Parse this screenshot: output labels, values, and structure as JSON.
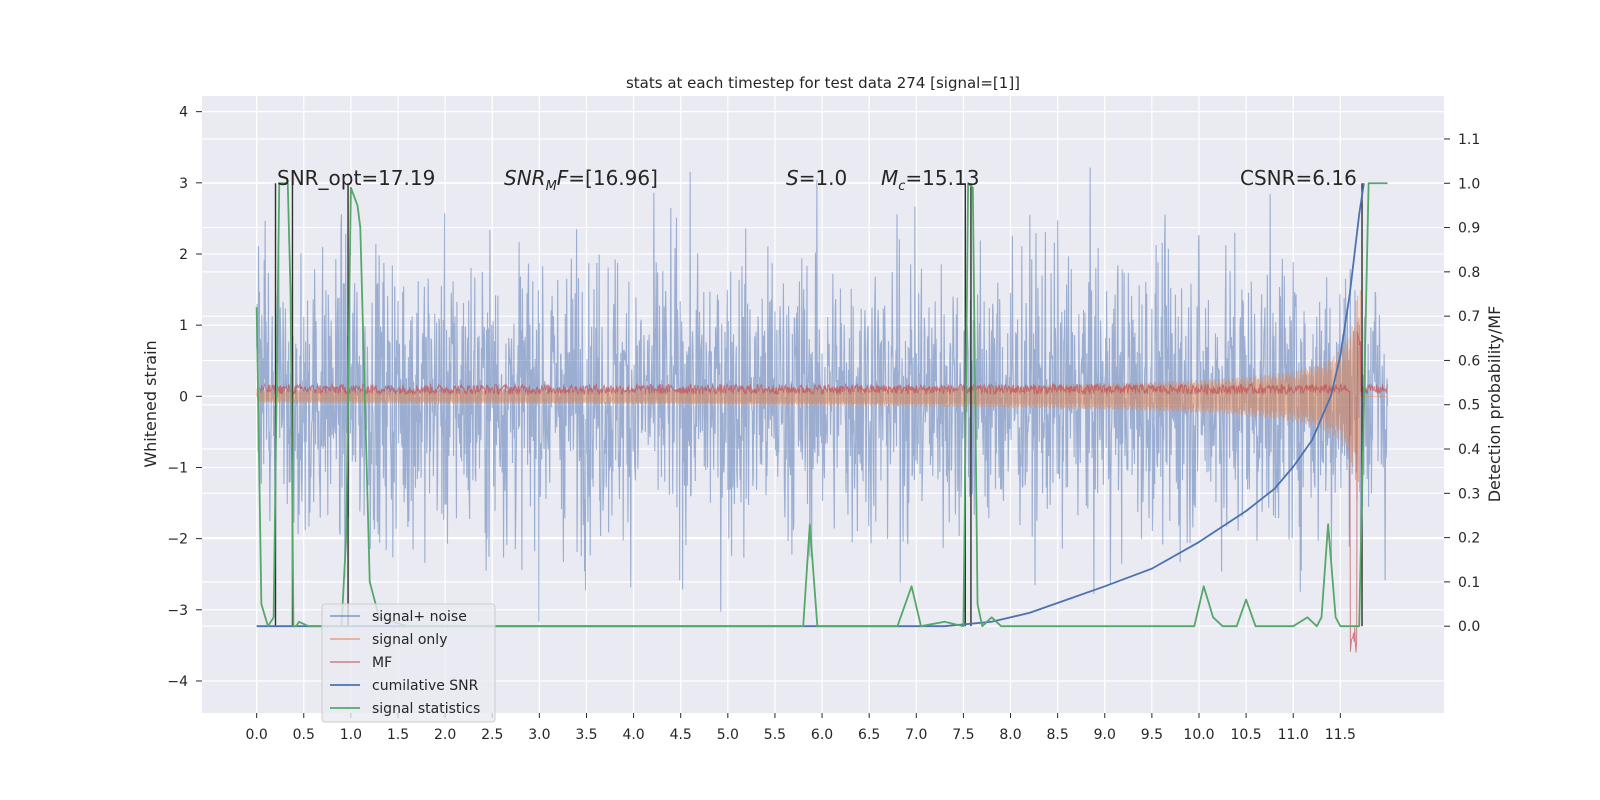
{
  "chart_data": {
    "type": "line",
    "title": "stats at each timestep for test data 274 [signal=[1]]",
    "xlabel": "",
    "ylabel": "Whitened strain",
    "y2label": "Detection probability/MF",
    "xlim": [
      -0.58,
      12.6
    ],
    "ylim": [
      -4.45,
      4.22
    ],
    "y2lim": [
      -0.196,
      1.197
    ],
    "grid": true,
    "legend_position": "lower-left",
    "xticks": [
      0.0,
      0.5,
      1.0,
      1.5,
      2.0,
      2.5,
      3.0,
      3.5,
      4.0,
      4.5,
      5.0,
      5.5,
      6.0,
      6.5,
      7.0,
      7.5,
      8.0,
      8.5,
      9.0,
      9.5,
      10.0,
      10.5,
      11.0,
      11.5
    ],
    "xtick_labels": [
      "0.0",
      "0.5",
      "1.0",
      "1.5",
      "2.0",
      "2.5",
      "3.0",
      "3.5",
      "4.0",
      "4.5",
      "5.0",
      "5.5",
      "6.0",
      "6.5",
      "7.0",
      "7.5",
      "8.0",
      "8.5",
      "9.0",
      "9.5",
      "10.0",
      "10.5",
      "11.0",
      "11.5"
    ],
    "yticks": [
      -4,
      -3,
      -2,
      -1,
      0,
      1,
      2,
      3,
      4
    ],
    "ytick_labels": [
      "−4",
      "−3",
      "−2",
      "−1",
      "0",
      "1",
      "2",
      "3",
      "4"
    ],
    "y2ticks": [
      0.0,
      0.1,
      0.2,
      0.3,
      0.4,
      0.5,
      0.6,
      0.7,
      0.8,
      0.9,
      1.0,
      1.1
    ],
    "y2tick_labels": [
      "0.0",
      "0.1",
      "0.2",
      "0.3",
      "0.4",
      "0.5",
      "0.6",
      "0.7",
      "0.8",
      "0.9",
      "1.0",
      "1.1"
    ],
    "annotations": [
      {
        "id": "snr_opt",
        "text": "SNR_opt=17.19",
        "x": 0.2,
        "y": 3.0
      },
      {
        "id": "snr_mf",
        "text": "SNR_MF=[16.96]",
        "x": 2.6,
        "y": 3.0
      },
      {
        "id": "s",
        "text": "S=1.0",
        "x": 5.6,
        "y": 3.0
      },
      {
        "id": "mc",
        "text": "M_c=15.13",
        "x": 6.6,
        "y": 3.0
      },
      {
        "id": "csnr",
        "text": "CSNR=6.16",
        "x": 10.4,
        "y": 3.0
      }
    ],
    "series": [
      {
        "name": "signal+ noise",
        "color": "#4c72b0",
        "axis": "left",
        "kind": "noise",
        "std": 1.0,
        "x_range": [
          0.0,
          12.0
        ]
      },
      {
        "name": "signal only",
        "color": "#dd8452",
        "axis": "left",
        "kind": "chirp",
        "x_range": [
          0.0,
          12.0
        ]
      },
      {
        "name": "MF",
        "color": "#c44e52",
        "axis": "left",
        "kind": "mf",
        "x_range": [
          0.0,
          12.0
        ]
      },
      {
        "name": "cumilative SNR",
        "color": "#4c72b0",
        "axis": "right",
        "x": [
          0.0,
          7.3,
          7.8,
          8.2,
          8.6,
          9.0,
          9.5,
          10.0,
          10.5,
          10.8,
          11.0,
          11.2,
          11.4,
          11.5,
          11.6,
          11.7,
          11.75
        ],
        "y": [
          0.0,
          0.0,
          0.01,
          0.03,
          0.06,
          0.09,
          0.13,
          0.19,
          0.26,
          0.31,
          0.36,
          0.42,
          0.52,
          0.61,
          0.75,
          0.93,
          1.0
        ]
      },
      {
        "name": "signal statistics",
        "color": "#55a868",
        "axis": "right",
        "x": [
          0.0,
          0.05,
          0.12,
          0.18,
          0.21,
          0.24,
          0.26,
          0.33,
          0.36,
          0.39,
          0.42,
          0.45,
          0.55,
          0.9,
          0.95,
          1.0,
          1.07,
          1.1,
          1.2,
          1.3,
          1.6,
          2.0,
          3.0,
          4.0,
          5.0,
          5.8,
          5.87,
          5.95,
          6.3,
          6.8,
          6.95,
          7.05,
          7.3,
          7.5,
          7.55,
          7.6,
          7.65,
          7.7,
          7.8,
          7.9,
          8.0,
          9.0,
          9.8,
          9.95,
          10.05,
          10.15,
          10.25,
          10.4,
          10.5,
          10.6,
          11.0,
          11.15,
          11.25,
          11.3,
          11.37,
          11.45,
          11.5,
          11.6,
          11.7,
          11.75,
          11.8,
          11.85,
          12.0
        ],
        "y": [
          0.72,
          0.05,
          0.0,
          0.02,
          0.5,
          1.0,
          1.0,
          1.0,
          0.75,
          0.0,
          0.0,
          0.01,
          0.0,
          0.0,
          0.2,
          0.99,
          0.95,
          0.9,
          0.1,
          0.02,
          0.0,
          0.0,
          0.0,
          0.0,
          0.0,
          0.0,
          0.23,
          0.0,
          0.0,
          0.0,
          0.09,
          0.0,
          0.01,
          0.0,
          1.0,
          0.99,
          0.05,
          0.0,
          0.02,
          0.0,
          0.0,
          0.0,
          0.0,
          0.0,
          0.09,
          0.02,
          0.0,
          0.0,
          0.06,
          0.0,
          0.0,
          0.02,
          0.0,
          0.02,
          0.23,
          0.02,
          0.0,
          0.0,
          0.0,
          0.5,
          1.0,
          1.0,
          1.0
        ]
      }
    ],
    "threshold_lines": {
      "color": "#2f2f2f",
      "x": [
        0.2,
        0.38,
        0.97,
        7.52,
        7.58,
        11.73
      ],
      "y_range": [
        0.0,
        1.0
      ]
    }
  },
  "legend": {
    "items": [
      {
        "label": "signal+ noise",
        "color": "#4c72b0",
        "opacity": 0.6
      },
      {
        "label": "signal only",
        "color": "#dd8452",
        "opacity": 0.6
      },
      {
        "label": "MF",
        "color": "#c44e52",
        "opacity": 0.6
      },
      {
        "label": "cumilative SNR",
        "color": "#4c72b0",
        "opacity": 1.0
      },
      {
        "label": "signal statistics",
        "color": "#55a868",
        "opacity": 1.0
      }
    ]
  },
  "colors": {
    "plot_background": "#eaeaf2",
    "grid": "#ffffff"
  }
}
